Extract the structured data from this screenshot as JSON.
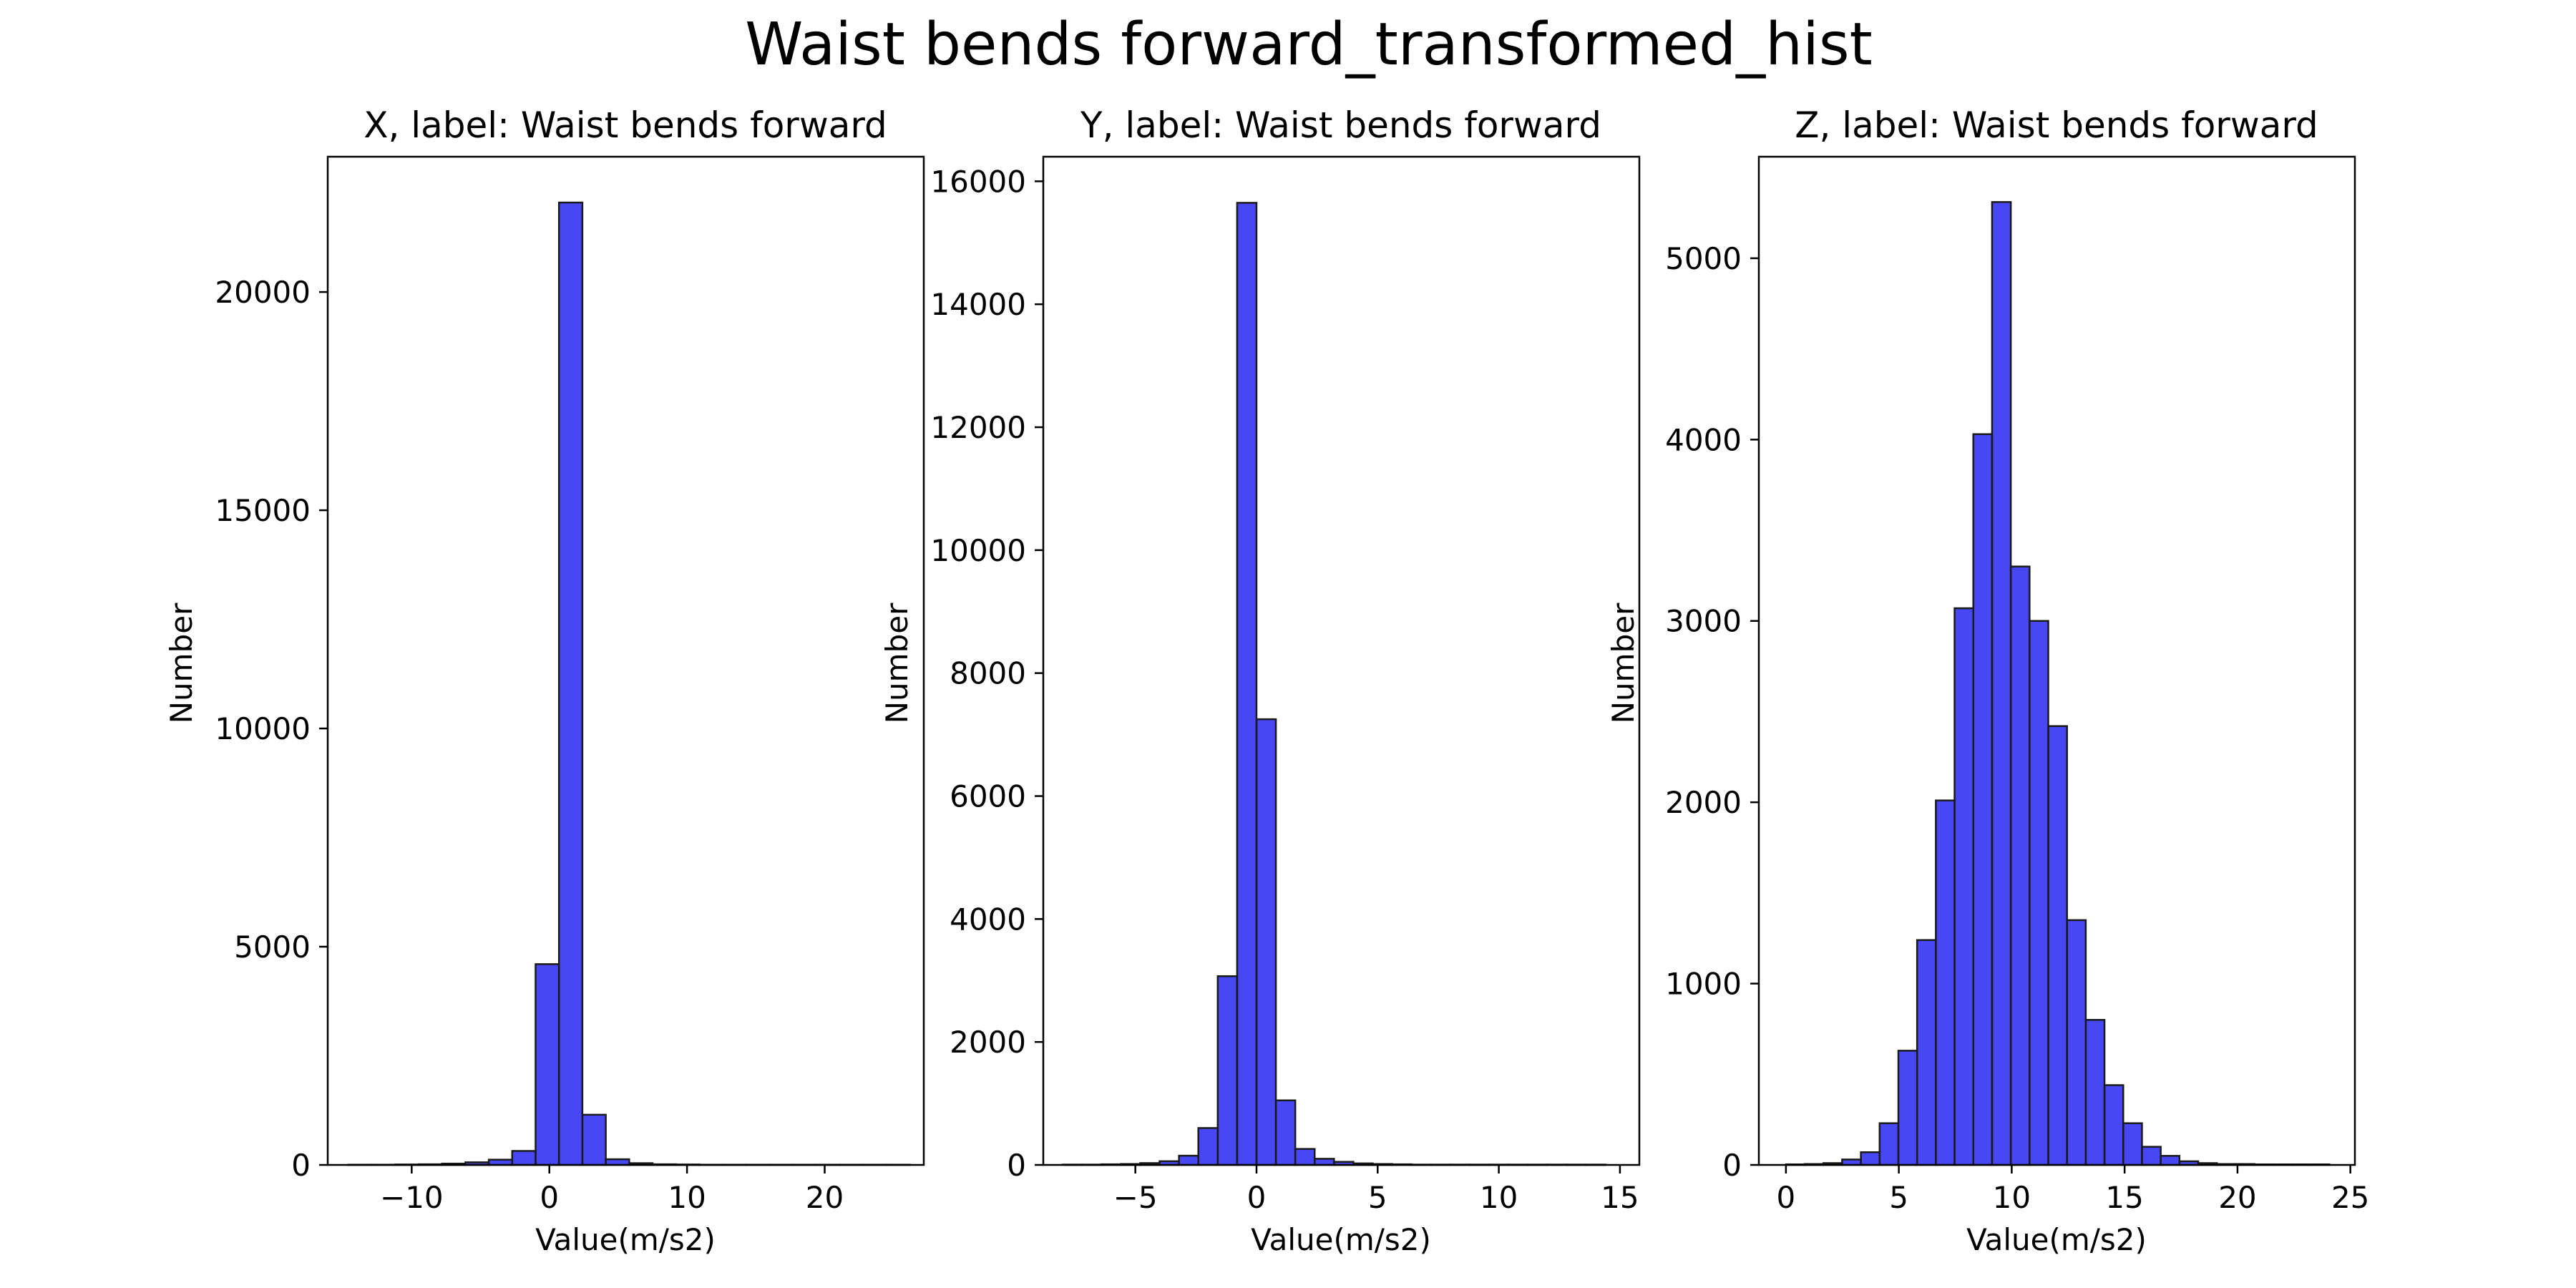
{
  "figure": {
    "title": "Waist bends forward_transformed_hist"
  },
  "style": {
    "bar_fill": "#0000ee",
    "bar_opacity": 0.72,
    "bar_edge": "#1a1a1a",
    "axes_color": "#000000",
    "background": "#ffffff"
  },
  "chart_data": [
    {
      "type": "bar",
      "title": "X, label: Waist bends forward",
      "xlabel": "Value(m/s2)",
      "ylabel": "Number",
      "xlim": [
        -16.1,
        27.2
      ],
      "ylim": [
        0,
        23100
      ],
      "xticks": [
        -10,
        0,
        10,
        20
      ],
      "xtick_labels": [
        "−10",
        "0",
        "10",
        "20"
      ],
      "yticks": [
        0,
        5000,
        10000,
        15000,
        20000
      ],
      "yticklabels": [
        "0",
        "5000",
        "10000",
        "15000",
        "20000"
      ],
      "grid": false,
      "bin_edges": [
        -14.6,
        -12.9,
        -11.2,
        -9.5,
        -7.8,
        -6.1,
        -4.4,
        -2.7,
        -1.0,
        0.7,
        2.4,
        4.1,
        5.8,
        7.5,
        9.2,
        10.9,
        12.6,
        14.3,
        16.0,
        17.7,
        19.4,
        21.1,
        22.8,
        24.5,
        26.2
      ],
      "counts": [
        5,
        5,
        10,
        15,
        30,
        60,
        120,
        320,
        4600,
        22050,
        1150,
        130,
        40,
        15,
        10,
        5,
        5,
        5,
        5,
        5,
        5,
        5,
        5,
        5
      ]
    },
    {
      "type": "bar",
      "title": "Y, label: Waist bends forward",
      "xlabel": "Value(m/s2)",
      "ylabel": "Number",
      "xlim": [
        -8.8,
        15.8
      ],
      "ylim": [
        0,
        16400
      ],
      "xticks": [
        -5,
        0,
        5,
        10,
        15
      ],
      "xtick_labels": [
        "−5",
        "0",
        "5",
        "10",
        "15"
      ],
      "yticks": [
        0,
        2000,
        4000,
        6000,
        8000,
        10000,
        12000,
        14000,
        16000
      ],
      "yticklabels": [
        "0",
        "2000",
        "4000",
        "6000",
        "8000",
        "10000",
        "12000",
        "14000",
        "16000"
      ],
      "grid": false,
      "bin_edges": [
        -8.0,
        -7.2,
        -6.4,
        -5.6,
        -4.8,
        -4.0,
        -3.2,
        -2.4,
        -1.6,
        -0.8,
        0.0,
        0.8,
        1.6,
        2.4,
        3.2,
        4.0,
        4.8,
        5.6,
        6.4,
        7.2,
        8.0,
        8.8,
        9.6,
        10.4,
        11.2,
        12.0,
        12.8,
        13.6,
        14.4
      ],
      "counts": [
        5,
        5,
        10,
        15,
        30,
        60,
        150,
        600,
        3070,
        15650,
        7250,
        1050,
        260,
        100,
        50,
        25,
        15,
        10,
        5,
        5,
        5,
        5,
        5,
        5,
        5,
        5,
        5,
        5
      ]
    },
    {
      "type": "bar",
      "title": "Z, label: Waist bends forward",
      "xlabel": "Value(m/s2)",
      "ylabel": "Number",
      "xlim": [
        -1.2,
        25.2
      ],
      "ylim": [
        0,
        5560
      ],
      "xticks": [
        0,
        5,
        10,
        15,
        20,
        25
      ],
      "xtick_labels": [
        "0",
        "5",
        "10",
        "15",
        "20",
        "25"
      ],
      "yticks": [
        0,
        1000,
        2000,
        3000,
        4000,
        5000
      ],
      "yticklabels": [
        "0",
        "1000",
        "2000",
        "3000",
        "4000",
        "5000"
      ],
      "grid": false,
      "bin_edges": [
        0.0,
        0.83,
        1.66,
        2.49,
        3.32,
        4.15,
        4.98,
        5.81,
        6.64,
        7.47,
        8.3,
        9.13,
        9.96,
        10.79,
        11.62,
        12.45,
        13.28,
        14.11,
        14.94,
        15.77,
        16.6,
        17.43,
        18.26,
        19.09,
        19.92,
        20.75,
        21.58,
        22.41,
        23.24,
        24.07
      ],
      "counts": [
        3,
        5,
        10,
        30,
        70,
        230,
        630,
        1240,
        2010,
        3070,
        4030,
        5310,
        3300,
        3000,
        2420,
        1350,
        800,
        440,
        230,
        100,
        50,
        20,
        10,
        5,
        5,
        3,
        3,
        3,
        3
      ]
    }
  ]
}
